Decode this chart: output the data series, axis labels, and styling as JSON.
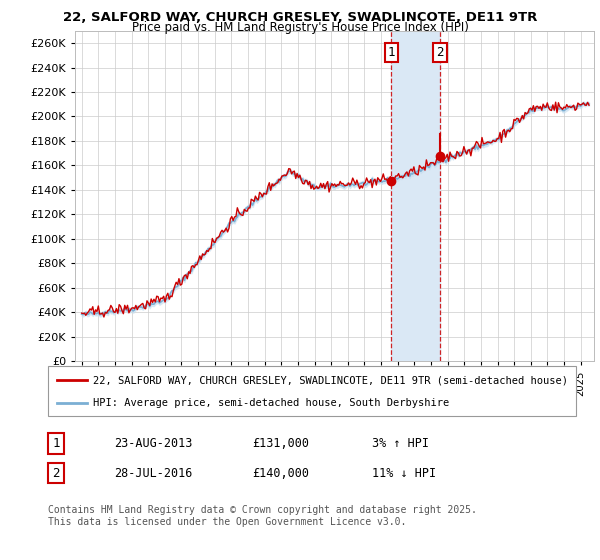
{
  "title": "22, SALFORD WAY, CHURCH GRESLEY, SWADLINCOTE, DE11 9TR",
  "subtitle": "Price paid vs. HM Land Registry's House Price Index (HPI)",
  "ylim": [
    0,
    270000
  ],
  "yticks": [
    0,
    20000,
    40000,
    60000,
    80000,
    100000,
    120000,
    140000,
    160000,
    180000,
    200000,
    220000,
    240000,
    260000
  ],
  "background_color": "#ffffff",
  "grid_color": "#cccccc",
  "hpi_color": "#7bafd4",
  "hpi_fill_color": "#c8dff0",
  "price_color": "#cc0000",
  "span_color": "#dae8f5",
  "transaction1_x": 2013.622,
  "transaction1_price": 131000,
  "transaction2_x": 2016.539,
  "transaction2_price": 140000,
  "legend_line1": "22, SALFORD WAY, CHURCH GRESLEY, SWADLINCOTE, DE11 9TR (semi-detached house)",
  "legend_line2": "HPI: Average price, semi-detached house, South Derbyshire",
  "table_row1_num": "1",
  "table_row1_date": "23-AUG-2013",
  "table_row1_price": "£131,000",
  "table_row1_hpi": "3% ↑ HPI",
  "table_row2_num": "2",
  "table_row2_date": "28-JUL-2016",
  "table_row2_price": "£140,000",
  "table_row2_hpi": "11% ↓ HPI",
  "footer": "Contains HM Land Registry data © Crown copyright and database right 2025.\nThis data is licensed under the Open Government Licence v3.0."
}
